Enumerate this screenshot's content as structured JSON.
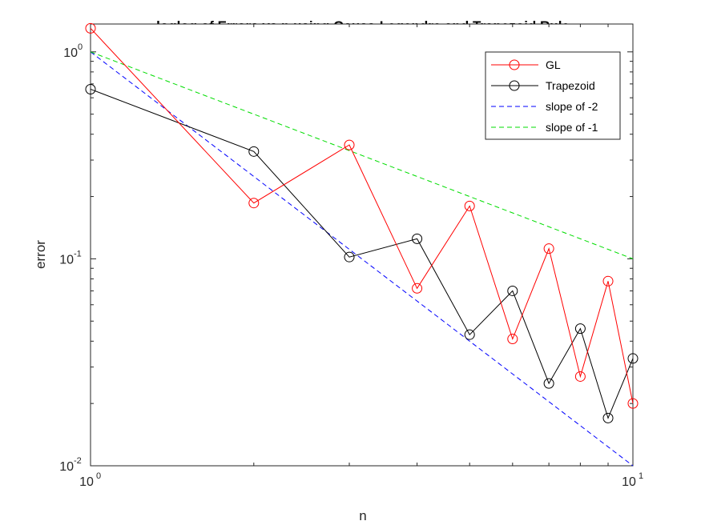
{
  "chart_data": {
    "type": "line",
    "title": "loglog of Errors vs n using Gauss-Legendre and Trapezoid Rule",
    "xlabel": "n",
    "ylabel": "error",
    "xscale": "log",
    "yscale": "log",
    "xlim": [
      1,
      10
    ],
    "ylim": [
      0.01,
      1.4
    ],
    "grid": false,
    "legend_location": "top-right",
    "xticks": [
      {
        "base": "10",
        "exp": "0",
        "value": 1
      },
      {
        "base": "10",
        "exp": "1",
        "value": 10
      }
    ],
    "yticks": [
      {
        "base": "10",
        "exp": "-2",
        "value": 0.01
      },
      {
        "base": "10",
        "exp": "-1",
        "value": 0.1
      },
      {
        "base": "10",
        "exp": "0",
        "value": 1
      }
    ],
    "series": [
      {
        "name": "GL",
        "color": "#ff0000",
        "line": "solid",
        "marker": "circle",
        "x": [
          1,
          2,
          3,
          4,
          5,
          6,
          7,
          8,
          9,
          10
        ],
        "y": [
          1.3,
          0.186,
          0.355,
          0.072,
          0.18,
          0.041,
          0.112,
          0.027,
          0.078,
          0.02
        ]
      },
      {
        "name": "Trapezoid",
        "color": "#000000",
        "line": "solid",
        "marker": "circle",
        "x": [
          1,
          2,
          3,
          4,
          5,
          6,
          7,
          8,
          9,
          10
        ],
        "y": [
          0.66,
          0.33,
          0.102,
          0.125,
          0.043,
          0.07,
          0.025,
          0.046,
          0.017,
          0.033
        ]
      },
      {
        "name": "slope of -2",
        "color": "#0000ff",
        "line": "dashed",
        "marker": "none",
        "x": [
          1,
          10
        ],
        "y": [
          1,
          0.01
        ]
      },
      {
        "name": "slope of -1",
        "color": "#00dd00",
        "line": "dashed",
        "marker": "none",
        "x": [
          1,
          10
        ],
        "y": [
          1,
          0.1
        ]
      }
    ]
  }
}
